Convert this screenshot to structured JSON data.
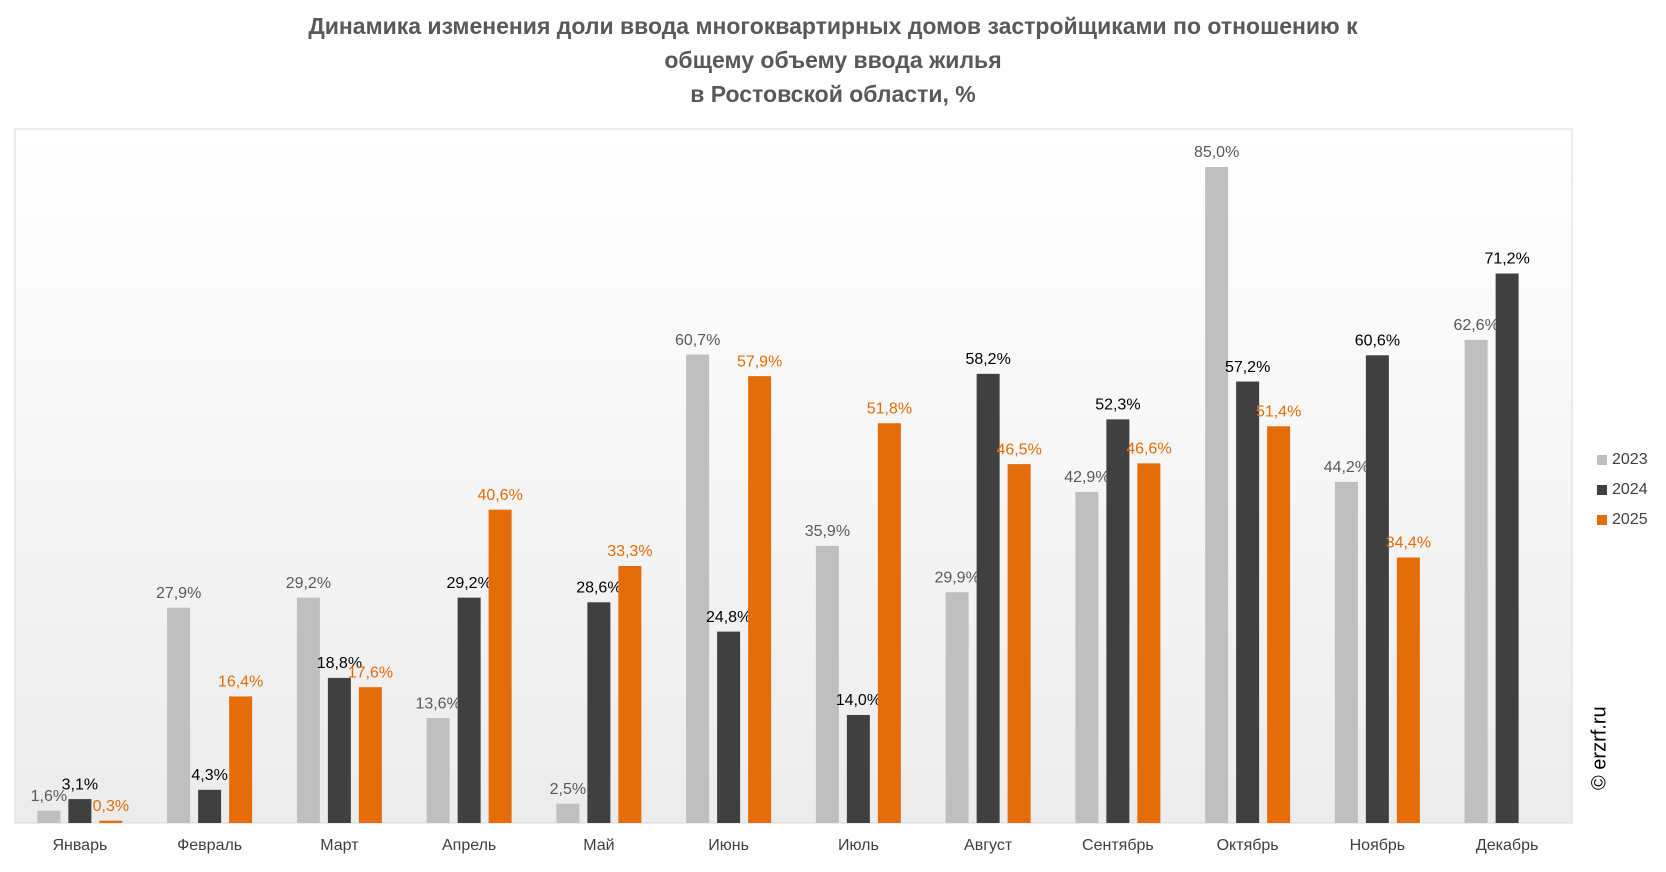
{
  "chart_data": {
    "type": "bar",
    "title": [
      "Динамика изменения доли ввода многоквартирных домов застройщиками по отношению к",
      "общему объему ввода жилья",
      "в Ростовской области, %"
    ],
    "categories": [
      "Январь",
      "Февраль",
      "Март",
      "Апрель",
      "Май",
      "Июнь",
      "Июль",
      "Август",
      "Сентябрь",
      "Октябрь",
      "Ноябрь",
      "Декабрь"
    ],
    "series": [
      {
        "name": "2023",
        "color": "#bfbfbf",
        "label_color": "#595959",
        "values": [
          1.6,
          27.9,
          29.2,
          13.6,
          2.5,
          60.7,
          35.9,
          29.9,
          42.9,
          85.0,
          44.2,
          62.6
        ],
        "value_labels": [
          "1,6%",
          "27,9%",
          "29,2%",
          "13,6%",
          "2,5%",
          "60,7%",
          "35,9%",
          "29,9%",
          "42,9%",
          "85,0%",
          "44,2%",
          "62,6%"
        ]
      },
      {
        "name": "2024",
        "color": "#404040",
        "label_color": "#000000",
        "values": [
          3.1,
          4.3,
          18.8,
          29.2,
          28.6,
          24.8,
          14.0,
          58.2,
          52.3,
          57.2,
          60.6,
          71.2
        ],
        "value_labels": [
          "3,1%",
          "4,3%",
          "18,8%",
          "29,2%",
          "28,6%",
          "24,8%",
          "14,0%",
          "58,2%",
          "52,3%",
          "57,2%",
          "60,6%",
          "71,2%"
        ]
      },
      {
        "name": "2025",
        "color": "#e46c0a",
        "label_color": "#e46c0a",
        "values": [
          0.3,
          16.4,
          17.6,
          40.6,
          33.3,
          57.9,
          51.8,
          46.5,
          46.6,
          51.4,
          34.4,
          null
        ],
        "value_labels": [
          "0,3%",
          "16,4%",
          "17,6%",
          "40,6%",
          "33,3%",
          "57,9%",
          "51,8%",
          "46,5%",
          "46,6%",
          "51,4%",
          "34,4%",
          null
        ]
      }
    ],
    "legend": "right",
    "watermark": "© erzrf.ru"
  }
}
